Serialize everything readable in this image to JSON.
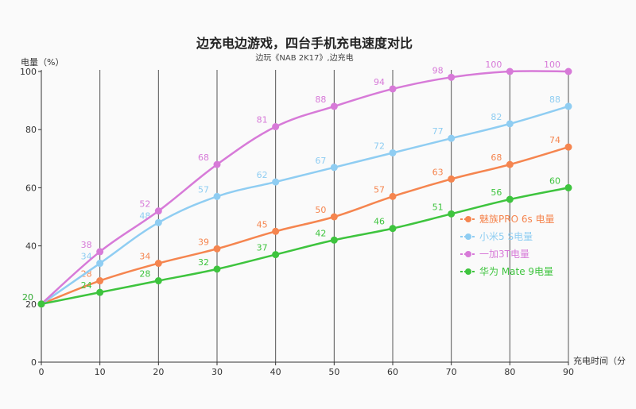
{
  "chart_data": {
    "type": "line",
    "title": "边充电边游戏，四台手机充电速度对比",
    "subtitle": "边玩《NAB 2K17》,边充电",
    "ylabel": "电量（%）",
    "xlabel": "充电时间（分",
    "x": [
      0,
      10,
      20,
      30,
      40,
      50,
      60,
      70,
      80,
      90
    ],
    "xlim": [
      0,
      90
    ],
    "ylim": [
      0,
      100
    ],
    "yticks": [
      0,
      20,
      40,
      60,
      80,
      100
    ],
    "grid": "vertical",
    "legend_position": "right",
    "series": [
      {
        "name": "魅族PRO 6s 电量",
        "color": "#f5854f",
        "values": [
          20,
          28,
          34,
          39,
          45,
          50,
          57,
          63,
          68,
          74
        ]
      },
      {
        "name": "小米5 S电量",
        "color": "#8fcdf2",
        "values": [
          20,
          34,
          48,
          57,
          62,
          67,
          72,
          77,
          82,
          88
        ]
      },
      {
        "name": "一加3T电量",
        "color": "#d77ad8",
        "values": [
          20,
          38,
          52,
          68,
          81,
          88,
          94,
          98,
          100,
          100
        ]
      },
      {
        "name": "华为 Mate 9电量",
        "color": "#3ec43e",
        "values": [
          20,
          24,
          28,
          32,
          37,
          42,
          46,
          51,
          56,
          60
        ]
      }
    ]
  }
}
